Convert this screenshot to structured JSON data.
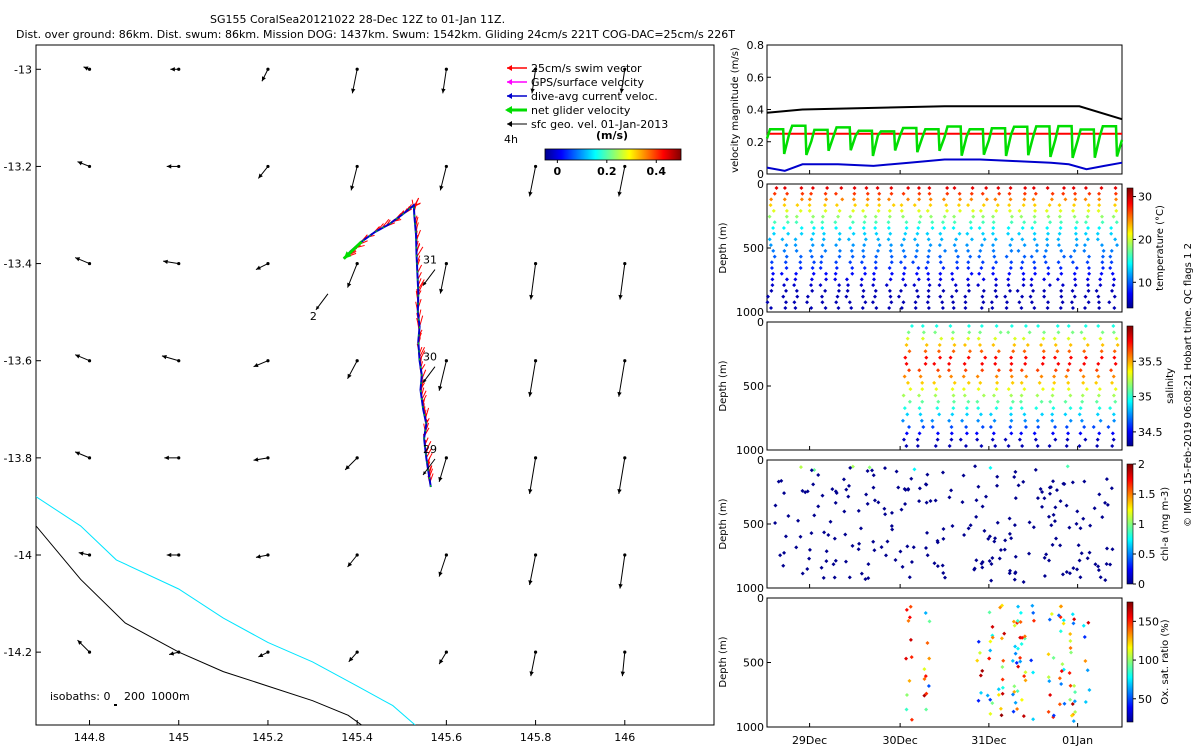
{
  "title_line1": "SG155 CoralSea20121022 28-Dec 12Z to 01-Jan 11Z.",
  "title_line2": "Dist. over ground: 86km. Dist. swum: 86km. Mission DOG: 1437km. Swum: 1542km. Gliding 24cm/s 221T COG-DAC=25cm/s 226T",
  "colors": {
    "swim": "#ff0000",
    "gps": "#ff00ff",
    "dac": "#0000cc",
    "net": "#00dd00",
    "sfc": "#000000",
    "isobath200": "#00e5ff",
    "isobath1000": "#000000"
  },
  "chart_data": [
    {
      "type": "scatter",
      "name": "map",
      "xlim": [
        144.68,
        146.2
      ],
      "ylim": [
        -14.35,
        -12.95
      ],
      "xticks": [
        "144.8",
        "145",
        "145.2",
        "145.4",
        "145.6",
        "145.8",
        "146"
      ],
      "yticks": [
        "-13",
        "-13.2",
        "-13.4",
        "-13.6",
        "-13.8",
        "-14",
        "-14.2"
      ],
      "legend": {
        "position": "top-right",
        "entries": [
          "25cm/s swim vector",
          "GPS/surface velocity",
          "dive-avg current veloc.",
          "net glider velocity",
          "sfc geo. vel. 01-Jan-2013"
        ]
      },
      "scale_label": "4h",
      "colorbar": {
        "label": "(m/s)",
        "ticks": [
          "0",
          "0.2",
          "0.4"
        ],
        "range": [
          -0.05,
          0.5
        ]
      },
      "track": [
        [
          145.565,
          -13.86
        ],
        [
          145.56,
          -13.83
        ],
        [
          145.555,
          -13.8
        ],
        [
          145.55,
          -13.76
        ],
        [
          145.555,
          -13.73
        ],
        [
          145.548,
          -13.7
        ],
        [
          145.542,
          -13.66
        ],
        [
          145.545,
          -13.63
        ],
        [
          145.54,
          -13.6
        ],
        [
          145.537,
          -13.56
        ],
        [
          145.54,
          -13.53
        ],
        [
          145.536,
          -13.5
        ],
        [
          145.537,
          -13.46
        ],
        [
          145.535,
          -13.42
        ],
        [
          145.533,
          -13.38
        ],
        [
          145.532,
          -13.34
        ],
        [
          145.528,
          -13.3
        ],
        [
          145.527,
          -13.28
        ],
        [
          145.5,
          -13.3
        ],
        [
          145.47,
          -13.32
        ],
        [
          145.44,
          -13.335
        ],
        [
          145.41,
          -13.355
        ],
        [
          145.385,
          -13.375
        ],
        [
          145.37,
          -13.39
        ]
      ],
      "day_labels": [
        {
          "text": "29",
          "lon": 145.57,
          "lat": -13.79
        },
        {
          "text": "30",
          "lon": 145.57,
          "lat": -13.6
        },
        {
          "text": "31",
          "lon": 145.57,
          "lat": -13.4
        },
        {
          "text": "2",
          "lon": 145.33,
          "lat": -13.45
        }
      ],
      "isobath_200": [
        [
          144.68,
          -13.88
        ],
        [
          144.78,
          -13.94
        ],
        [
          144.86,
          -14.01
        ],
        [
          145.0,
          -14.07
        ],
        [
          145.1,
          -14.13
        ],
        [
          145.2,
          -14.18
        ],
        [
          145.3,
          -14.22
        ],
        [
          145.4,
          -14.27
        ],
        [
          145.48,
          -14.31
        ],
        [
          145.53,
          -14.35
        ]
      ],
      "isobath_1000": [
        [
          144.68,
          -13.94
        ],
        [
          144.78,
          -14.05
        ],
        [
          144.88,
          -14.14
        ],
        [
          145.0,
          -14.2
        ],
        [
          145.1,
          -14.24
        ],
        [
          145.2,
          -14.27
        ],
        [
          145.3,
          -14.3
        ],
        [
          145.38,
          -14.33
        ],
        [
          145.41,
          -14.35
        ]
      ],
      "isobath_label": "isobaths: 0",
      "isobath_values": [
        "200",
        "1000m"
      ],
      "sfc_vectors": [
        [
          144.8,
          -13.0,
          0.05,
          0.02
        ],
        [
          145.0,
          -13.0,
          0.07,
          0.0
        ],
        [
          145.2,
          -13.0,
          0.05,
          -0.1
        ],
        [
          145.4,
          -13.0,
          0.04,
          -0.2
        ],
        [
          145.6,
          -13.0,
          0.03,
          -0.2
        ],
        [
          145.8,
          -13.0,
          0.03,
          -0.2
        ],
        [
          146.0,
          -13.0,
          0.03,
          -0.2
        ],
        [
          144.8,
          -13.2,
          0.1,
          0.04
        ],
        [
          145.0,
          -13.2,
          0.1,
          0.0
        ],
        [
          145.2,
          -13.2,
          0.08,
          -0.1
        ],
        [
          145.4,
          -13.2,
          0.05,
          -0.2
        ],
        [
          145.6,
          -13.2,
          0.05,
          -0.2
        ],
        [
          145.8,
          -13.2,
          0.05,
          -0.25
        ],
        [
          146.0,
          -13.2,
          0.05,
          -0.25
        ],
        [
          144.8,
          -13.4,
          0.12,
          0.05
        ],
        [
          145.0,
          -13.4,
          0.13,
          0.02
        ],
        [
          145.2,
          -13.4,
          0.1,
          -0.05
        ],
        [
          145.4,
          -13.4,
          0.08,
          -0.2
        ],
        [
          145.6,
          -13.4,
          0.05,
          -0.25
        ],
        [
          145.8,
          -13.4,
          0.04,
          -0.3
        ],
        [
          146.0,
          -13.4,
          0.04,
          -0.3
        ],
        [
          144.8,
          -13.6,
          0.12,
          0.05
        ],
        [
          145.0,
          -13.6,
          0.14,
          0.04
        ],
        [
          145.2,
          -13.6,
          0.12,
          -0.05
        ],
        [
          145.4,
          -13.6,
          0.08,
          -0.15
        ],
        [
          145.6,
          -13.6,
          0.06,
          -0.25
        ],
        [
          145.8,
          -13.6,
          0.05,
          -0.3
        ],
        [
          146.0,
          -13.6,
          0.05,
          -0.3
        ],
        [
          144.8,
          -13.8,
          0.12,
          0.05
        ],
        [
          145.0,
          -13.8,
          0.12,
          0.0
        ],
        [
          145.2,
          -13.8,
          0.12,
          -0.02
        ],
        [
          145.4,
          -13.8,
          0.1,
          -0.1
        ],
        [
          145.6,
          -13.8,
          0.06,
          -0.2
        ],
        [
          145.8,
          -13.8,
          0.05,
          -0.3
        ],
        [
          146.0,
          -13.8,
          0.05,
          -0.3
        ],
        [
          144.8,
          -14.0,
          0.09,
          0.02
        ],
        [
          145.0,
          -14.0,
          0.1,
          0.0
        ],
        [
          145.2,
          -14.0,
          0.1,
          -0.02
        ],
        [
          145.4,
          -14.0,
          0.08,
          -0.1
        ],
        [
          145.6,
          -14.0,
          0.06,
          -0.18
        ],
        [
          145.8,
          -14.0,
          0.05,
          -0.25
        ],
        [
          146.0,
          -14.0,
          0.04,
          -0.28
        ],
        [
          144.8,
          -14.2,
          0.1,
          0.1
        ],
        [
          145.0,
          -14.2,
          0.08,
          -0.02
        ],
        [
          145.2,
          -14.2,
          0.08,
          -0.04
        ],
        [
          145.4,
          -14.2,
          0.07,
          -0.08
        ],
        [
          145.6,
          -14.2,
          0.06,
          -0.1
        ],
        [
          145.8,
          -14.2,
          0.04,
          -0.2
        ],
        [
          146.0,
          -14.2,
          0.02,
          -0.2
        ]
      ]
    },
    {
      "type": "line",
      "name": "velocity",
      "ylabel": "velocity magnitude (m/s)",
      "ylim": [
        0,
        0.8
      ],
      "yticks": [
        "0",
        "0.2",
        "0.4",
        "0.6",
        "0.8"
      ],
      "series": [
        {
          "color": "#000000",
          "x": [
            0,
            0.1,
            0.3,
            0.5,
            0.7,
            0.88,
            1.0
          ],
          "y": [
            0.38,
            0.4,
            0.41,
            0.42,
            0.42,
            0.42,
            0.34
          ]
        },
        {
          "color": "#ff0000",
          "x": [
            0,
            1.0
          ],
          "y": [
            0.25,
            0.25
          ]
        },
        {
          "color": "#0000cc",
          "x": [
            0,
            0.05,
            0.1,
            0.2,
            0.3,
            0.4,
            0.5,
            0.6,
            0.7,
            0.8,
            0.85,
            0.9,
            0.95,
            1.0
          ],
          "y": [
            0.04,
            0.02,
            0.06,
            0.06,
            0.05,
            0.07,
            0.09,
            0.09,
            0.08,
            0.07,
            0.06,
            0.03,
            0.05,
            0.07
          ]
        }
      ]
    },
    {
      "type": "scatter",
      "name": "temperature",
      "ylabel": "Depth (m)",
      "colorlabel": "temperature (°C)",
      "yticks": [
        "0",
        "500",
        "1000"
      ],
      "cbar_ticks": [
        "30",
        "20",
        "10"
      ],
      "cbar_range": [
        4,
        32
      ],
      "dives": 27,
      "start_fraction": 0.0
    },
    {
      "type": "scatter",
      "name": "salinity",
      "ylabel": "Depth (m)",
      "colorlabel": "salinity",
      "yticks": [
        "0",
        "500",
        "1000"
      ],
      "cbar_ticks": [
        "35.5",
        "35",
        "34.5"
      ],
      "cbar_range": [
        34.3,
        36.0
      ],
      "dives": 15,
      "start_fraction": 0.38
    },
    {
      "type": "scatter",
      "name": "chla",
      "ylabel": "Depth (m)",
      "colorlabel": "chl-a (mg m-3)",
      "yticks": [
        "0",
        "500",
        "1000"
      ],
      "cbar_ticks": [
        "2",
        "1.5",
        "1",
        "0.5",
        "0"
      ],
      "cbar_range": [
        0,
        2
      ]
    },
    {
      "type": "scatter",
      "name": "oxygen",
      "ylabel": "Depth (m)",
      "colorlabel": "Ox. sat. ratio (%)",
      "yticks": [
        "0",
        "500",
        "1000"
      ],
      "cbar_ticks": [
        "150",
        "100",
        "50"
      ],
      "cbar_range": [
        20,
        175
      ],
      "xticks": [
        "29Dec",
        "30Dec",
        "31Dec",
        "01Jan"
      ]
    }
  ],
  "footer": "© IMOS 15-Feb-2019 06:08:21 Hobart time. QC flags 1  2"
}
